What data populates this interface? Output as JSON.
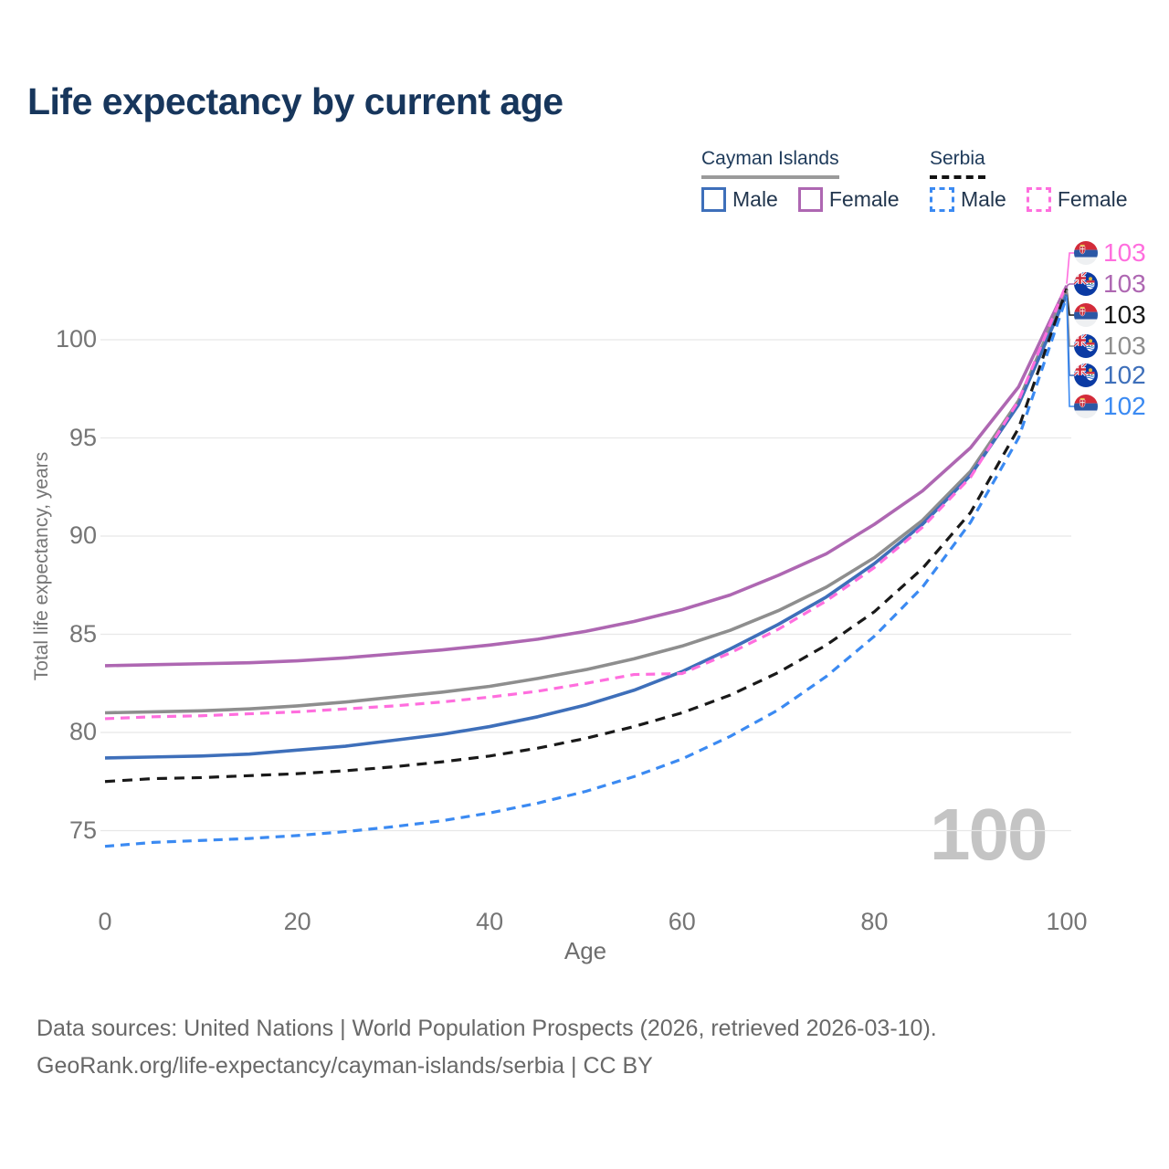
{
  "title": "Life expectancy by current age",
  "legend": {
    "groups": [
      {
        "country": "Cayman Islands",
        "line_style": "solid",
        "items": [
          {
            "label": "Male",
            "series": "cayman_male"
          },
          {
            "label": "Female",
            "series": "cayman_female"
          }
        ]
      },
      {
        "country": "Serbia",
        "line_style": "dashed",
        "items": [
          {
            "label": "Male",
            "series": "serbia_male"
          },
          {
            "label": "Female",
            "series": "serbia_female"
          }
        ]
      }
    ]
  },
  "footer": {
    "line1": "Data sources: United Nations | World Population Prospects (2026, retrieved 2026-03-10).",
    "line2": "GeoRank.org/life-expectancy/cayman-islands/serbia | CC BY"
  },
  "colors": {
    "title_text": "#17365c",
    "axis_text": "#757575",
    "gridline": "#e8e8e8",
    "watermark": "#c4c4c4",
    "legend_underline_cayman": "#9a9a9a",
    "legend_underline_serbia": "#121212"
  },
  "chart_data": {
    "type": "line",
    "title": "Life expectancy by current age",
    "xlabel": "Age",
    "ylabel": "Total life expectancy, years",
    "age_indicator": "100",
    "x_ticks": [
      0,
      20,
      40,
      60,
      80,
      100
    ],
    "y_ticks": [
      75,
      80,
      85,
      90,
      95,
      100
    ],
    "xlim": [
      0,
      100
    ],
    "ylim": [
      73.5,
      103.5
    ],
    "grid": "horizontal",
    "legend_position": "top-right",
    "ages": [
      0,
      5,
      10,
      15,
      20,
      25,
      30,
      35,
      40,
      45,
      50,
      55,
      60,
      65,
      70,
      75,
      80,
      85,
      90,
      95,
      100
    ],
    "series": [
      {
        "key": "cayman_female",
        "name": "Cayman Islands Female",
        "country": "Cayman Islands",
        "sex": "Female",
        "color": "#ae67b2",
        "dash": false,
        "values": [
          83.4,
          83.45,
          83.5,
          83.55,
          83.65,
          83.8,
          84.0,
          84.2,
          84.45,
          84.75,
          85.15,
          85.65,
          86.25,
          87.0,
          88.0,
          89.1,
          90.6,
          92.3,
          94.5,
          97.6,
          102.75
        ]
      },
      {
        "key": "cayman_total",
        "name": "Cayman Islands Both sexes",
        "country": "Cayman Islands",
        "sex": "Both",
        "color": "#8e8e8e",
        "dash": false,
        "values": [
          81.0,
          81.05,
          81.1,
          81.2,
          81.35,
          81.55,
          81.8,
          82.05,
          82.35,
          82.75,
          83.2,
          83.75,
          84.4,
          85.2,
          86.2,
          87.4,
          88.9,
          90.8,
          93.3,
          96.9,
          102.55
        ]
      },
      {
        "key": "cayman_male",
        "name": "Cayman Islands Male",
        "country": "Cayman Islands",
        "sex": "Male",
        "color": "#3e6fba",
        "dash": false,
        "values": [
          78.7,
          78.75,
          78.8,
          78.9,
          79.1,
          79.3,
          79.6,
          79.9,
          80.3,
          80.8,
          81.4,
          82.15,
          83.1,
          84.25,
          85.5,
          86.9,
          88.6,
          90.6,
          93.1,
          96.7,
          102.3
        ]
      },
      {
        "key": "serbia_female",
        "name": "Serbia Female",
        "country": "Serbia",
        "sex": "Female",
        "color": "#ff6ede",
        "dash": true,
        "values": [
          80.7,
          80.8,
          80.85,
          80.95,
          81.05,
          81.2,
          81.35,
          81.55,
          81.8,
          82.1,
          82.5,
          82.95,
          83.0,
          84.05,
          85.25,
          86.7,
          88.4,
          90.45,
          93.0,
          96.9,
          102.85
        ]
      },
      {
        "key": "serbia_total",
        "name": "Serbia Both sexes",
        "country": "Serbia",
        "sex": "Both",
        "color": "#191919",
        "dash": true,
        "values": [
          77.5,
          77.65,
          77.7,
          77.8,
          77.9,
          78.05,
          78.25,
          78.5,
          78.8,
          79.2,
          79.7,
          80.3,
          81.0,
          81.9,
          83.05,
          84.45,
          86.15,
          88.35,
          91.2,
          95.5,
          102.6
        ]
      },
      {
        "key": "serbia_male",
        "name": "Serbia Male",
        "country": "Serbia",
        "sex": "Male",
        "color": "#3b8af2",
        "dash": true,
        "values": [
          74.2,
          74.4,
          74.5,
          74.6,
          74.75,
          74.95,
          75.2,
          75.5,
          75.9,
          76.4,
          77.0,
          77.75,
          78.65,
          79.8,
          81.15,
          82.85,
          84.9,
          87.4,
          90.7,
          95.0,
          102.2
        ]
      }
    ],
    "end_labels": [
      {
        "value": "103",
        "flag": "serbia",
        "series": "serbia_female"
      },
      {
        "value": "103",
        "flag": "cayman",
        "series": "cayman_female"
      },
      {
        "value": "103",
        "flag": "serbia",
        "series": "serbia_total"
      },
      {
        "value": "103",
        "flag": "cayman",
        "series": "cayman_total"
      },
      {
        "value": "102",
        "flag": "cayman",
        "series": "cayman_male"
      },
      {
        "value": "102",
        "flag": "serbia",
        "series": "serbia_male"
      }
    ]
  }
}
